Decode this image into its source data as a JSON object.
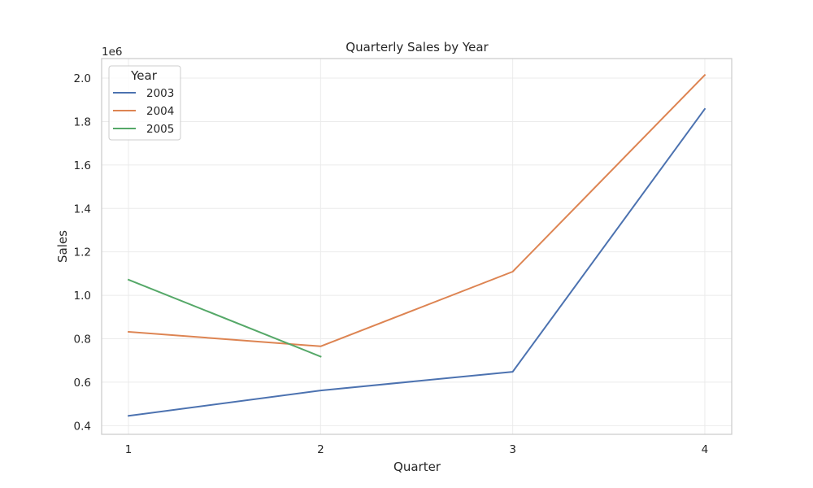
{
  "chart_data": {
    "type": "line",
    "title": "Quarterly Sales by Year",
    "xlabel": "Quarter",
    "ylabel": "Sales",
    "y_offset_label": "1e6",
    "x": [
      1,
      2,
      3,
      4
    ],
    "x_tick_labels": [
      "1",
      "2",
      "3",
      "4"
    ],
    "xlim": [
      0.86,
      4.14
    ],
    "ylim": [
      360000,
      2090000
    ],
    "y_ticks": [
      400000,
      600000,
      800000,
      1000000,
      1200000,
      1400000,
      1600000,
      1800000,
      2000000
    ],
    "y_tick_labels": [
      "0.4",
      "0.6",
      "0.8",
      "1.0",
      "1.2",
      "1.4",
      "1.6",
      "1.8",
      "2.0"
    ],
    "grid": true,
    "legend": {
      "title": "Year",
      "placement": "top-left"
    },
    "series": [
      {
        "name": "2003",
        "color": "#4c72b0",
        "x": [
          1,
          2,
          3,
          4
        ],
        "values": [
          445000,
          562000,
          648000,
          1858000
        ]
      },
      {
        "name": "2004",
        "color": "#dd8452",
        "x": [
          1,
          2,
          3,
          4
        ],
        "values": [
          832000,
          765000,
          1109000,
          2014000
        ]
      },
      {
        "name": "2005",
        "color": "#55a868",
        "x": [
          1,
          2
        ],
        "values": [
          1072000,
          718000
        ]
      }
    ]
  }
}
